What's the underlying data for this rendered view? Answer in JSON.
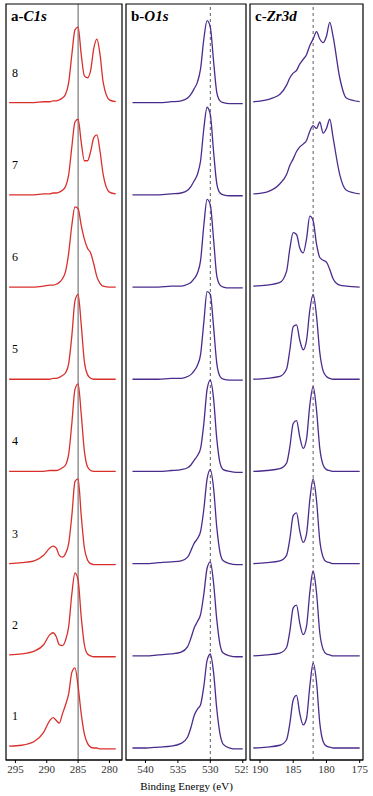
{
  "xlabel": "Binding Energy (eV)",
  "chart_data": [
    {
      "type": "line",
      "title": "a-C1s",
      "xlim": [
        296.5,
        278
      ],
      "xticks": [
        295,
        290,
        285,
        280
      ],
      "ylim": [
        -0.1,
        8.1
      ],
      "tick_labels": "x",
      "vlines": [
        {
          "x": 285,
          "line_style": "solid"
        }
      ],
      "x": [
        296,
        294,
        292,
        290.5,
        289.5,
        289,
        288.5,
        288,
        287.5,
        287,
        286.5,
        286,
        285.5,
        285,
        284.5,
        284,
        283.5,
        283,
        282.5,
        282,
        281.5,
        281,
        280,
        279
      ],
      "series": [
        {
          "name": "1",
          "color": "#d9302c",
          "values": [
            0.05,
            0.06,
            0.1,
            0.2,
            0.33,
            0.36,
            0.33,
            0.3,
            0.4,
            0.5,
            0.62,
            0.85,
            0.9,
            0.7,
            0.4,
            0.18,
            0.08,
            0.04,
            0.03,
            0.03,
            0.02,
            0.02,
            0.02,
            0.02
          ]
        },
        {
          "name": "2",
          "color": "#d9302c",
          "values": [
            1.04,
            1.05,
            1.08,
            1.15,
            1.26,
            1.28,
            1.24,
            1.15,
            1.14,
            1.2,
            1.35,
            1.7,
            1.93,
            1.85,
            1.45,
            1.15,
            1.05,
            1.03,
            1.02,
            1.02,
            1.02,
            1.02,
            1.02,
            1.02
          ]
        },
        {
          "name": "3",
          "color": "#d9302c",
          "values": [
            2.03,
            2.04,
            2.06,
            2.12,
            2.2,
            2.22,
            2.2,
            2.12,
            2.1,
            2.14,
            2.25,
            2.55,
            2.92,
            2.95,
            2.55,
            2.2,
            2.07,
            2.03,
            2.02,
            2.02,
            2.02,
            2.02,
            2.02,
            2.02
          ]
        },
        {
          "name": "4",
          "color": "#d9302c",
          "values": [
            3.03,
            3.03,
            3.03,
            3.03,
            3.04,
            3.04,
            3.04,
            3.05,
            3.07,
            3.1,
            3.22,
            3.55,
            3.92,
            3.98,
            3.65,
            3.25,
            3.08,
            3.04,
            3.03,
            3.03,
            3.03,
            3.03,
            3.03,
            3.03
          ]
        },
        {
          "name": "5",
          "color": "#d9302c",
          "values": [
            4.03,
            4.03,
            4.03,
            4.03,
            4.03,
            4.04,
            4.04,
            4.05,
            4.07,
            4.1,
            4.2,
            4.5,
            4.88,
            4.95,
            4.62,
            4.22,
            4.08,
            4.04,
            4.03,
            4.03,
            4.03,
            4.03,
            4.03,
            4.03
          ]
        },
        {
          "name": "6",
          "color": "#d9302c",
          "values": [
            5.03,
            5.03,
            5.03,
            5.04,
            5.05,
            5.05,
            5.06,
            5.08,
            5.12,
            5.2,
            5.4,
            5.7,
            5.9,
            5.88,
            5.7,
            5.55,
            5.45,
            5.4,
            5.28,
            5.14,
            5.07,
            5.04,
            5.03,
            5.03
          ]
        },
        {
          "name": "7",
          "color": "#d9302c",
          "values": [
            6.03,
            6.03,
            6.03,
            6.04,
            6.04,
            6.05,
            6.05,
            6.06,
            6.08,
            6.12,
            6.25,
            6.55,
            6.82,
            6.85,
            6.6,
            6.4,
            6.4,
            6.5,
            6.65,
            6.68,
            6.5,
            6.25,
            6.06,
            6.04
          ]
        },
        {
          "name": "8",
          "color": "#d9302c",
          "values": [
            7.03,
            7.03,
            7.03,
            7.04,
            7.04,
            7.05,
            7.05,
            7.06,
            7.08,
            7.12,
            7.25,
            7.55,
            7.82,
            7.85,
            7.55,
            7.32,
            7.3,
            7.38,
            7.62,
            7.72,
            7.55,
            7.25,
            7.06,
            7.04
          ]
        }
      ]
    },
    {
      "type": "line",
      "title": "b-O1s",
      "xlim": [
        543,
        524.5
      ],
      "xticks": [
        540,
        535,
        530,
        525
      ],
      "ylim": [
        -0.1,
        8.1
      ],
      "tick_labels": "x",
      "vlines": [
        {
          "x": 530,
          "line_style": "dashed"
        }
      ],
      "x": [
        542,
        540,
        538,
        536,
        534.5,
        533.5,
        533,
        532.5,
        532,
        531.5,
        531,
        530.5,
        530,
        529.5,
        529,
        528.5,
        528,
        527,
        526,
        525
      ],
      "series": [
        {
          "color": "#4a2c8c",
          "values": [
            0.03,
            0.03,
            0.04,
            0.05,
            0.08,
            0.15,
            0.25,
            0.38,
            0.45,
            0.5,
            0.7,
            0.98,
            1.05,
            0.85,
            0.45,
            0.18,
            0.07,
            0.03,
            0.02,
            0.02
          ]
        },
        {
          "color": "#4a2c8c",
          "values": [
            1.03,
            1.03,
            1.04,
            1.05,
            1.07,
            1.13,
            1.22,
            1.33,
            1.4,
            1.48,
            1.7,
            1.98,
            2.05,
            1.82,
            1.42,
            1.15,
            1.06,
            1.03,
            1.02,
            1.02
          ]
        },
        {
          "color": "#4a2c8c",
          "values": [
            2.03,
            2.03,
            2.04,
            2.05,
            2.06,
            2.1,
            2.17,
            2.25,
            2.3,
            2.38,
            2.62,
            2.95,
            3.05,
            2.85,
            2.42,
            2.15,
            2.06,
            2.03,
            2.02,
            2.02
          ]
        },
        {
          "color": "#4a2c8c",
          "values": [
            3.03,
            3.03,
            3.03,
            3.04,
            3.05,
            3.07,
            3.1,
            3.15,
            3.2,
            3.28,
            3.55,
            3.92,
            4.02,
            3.82,
            3.38,
            3.12,
            3.05,
            3.03,
            3.02,
            3.02
          ]
        },
        {
          "color": "#4a2c8c",
          "values": [
            4.03,
            4.03,
            4.03,
            4.04,
            4.04,
            4.06,
            4.08,
            4.12,
            4.18,
            4.3,
            4.65,
            4.98,
            4.95,
            4.6,
            4.2,
            4.06,
            4.03,
            4.02,
            4.02,
            4.02
          ]
        },
        {
          "color": "#4a2c8c",
          "values": [
            5.03,
            5.03,
            5.03,
            5.04,
            5.04,
            5.06,
            5.08,
            5.12,
            5.18,
            5.32,
            5.7,
            5.98,
            5.92,
            5.55,
            5.15,
            5.05,
            5.03,
            5.02,
            5.02,
            5.02
          ]
        },
        {
          "color": "#4a2c8c",
          "values": [
            6.03,
            6.03,
            6.03,
            6.04,
            6.05,
            6.08,
            6.12,
            6.18,
            6.25,
            6.4,
            6.75,
            6.98,
            6.9,
            6.5,
            6.15,
            6.05,
            6.03,
            6.02,
            6.02,
            6.02
          ]
        },
        {
          "color": "#4a2c8c",
          "values": [
            7.03,
            7.03,
            7.03,
            7.04,
            7.05,
            7.08,
            7.12,
            7.18,
            7.25,
            7.4,
            7.72,
            7.92,
            7.85,
            7.48,
            7.14,
            7.05,
            7.03,
            7.02,
            7.02,
            7.02
          ]
        }
      ]
    },
    {
      "type": "line",
      "title": "c-Zr3d",
      "xlim": [
        191.5,
        174.5
      ],
      "xticks": [
        190,
        185,
        180,
        175
      ],
      "ylim": [
        -0.1,
        8.1
      ],
      "tick_labels": "x",
      "vlines": [
        {
          "x": 182,
          "line_style": "dashed"
        }
      ],
      "x": [
        191,
        189,
        187,
        186,
        185.5,
        185,
        184.5,
        184,
        183.5,
        183,
        182.5,
        182,
        181.5,
        181,
        180.5,
        180,
        179.5,
        179,
        178,
        177,
        175
      ],
      "series": [
        {
          "color": "#4a2c8c",
          "values": [
            0.03,
            0.04,
            0.06,
            0.12,
            0.3,
            0.55,
            0.6,
            0.4,
            0.28,
            0.35,
            0.7,
            0.95,
            0.75,
            0.3,
            0.1,
            0.05,
            0.04,
            0.03,
            0.03,
            0.03,
            0.03
          ]
        },
        {
          "color": "#4a2c8c",
          "values": [
            1.03,
            1.04,
            1.06,
            1.12,
            1.3,
            1.55,
            1.58,
            1.38,
            1.26,
            1.35,
            1.72,
            1.95,
            1.72,
            1.28,
            1.1,
            1.05,
            1.04,
            1.03,
            1.03,
            1.03,
            1.03
          ]
        },
        {
          "color": "#4a2c8c",
          "values": [
            2.03,
            2.04,
            2.06,
            2.12,
            2.3,
            2.55,
            2.58,
            2.38,
            2.26,
            2.35,
            2.72,
            2.95,
            2.72,
            2.28,
            2.1,
            2.05,
            2.04,
            2.03,
            2.03,
            2.03,
            2.03
          ]
        },
        {
          "color": "#4a2c8c",
          "values": [
            3.03,
            3.04,
            3.06,
            3.12,
            3.3,
            3.55,
            3.58,
            3.4,
            3.28,
            3.38,
            3.75,
            3.95,
            3.7,
            3.28,
            3.1,
            3.05,
            3.04,
            3.03,
            3.03,
            3.03,
            3.03
          ]
        },
        {
          "color": "#4a2c8c",
          "values": [
            4.03,
            4.04,
            4.06,
            4.14,
            4.35,
            4.6,
            4.62,
            4.45,
            4.35,
            4.45,
            4.78,
            4.95,
            4.72,
            4.32,
            4.12,
            4.06,
            4.04,
            4.03,
            4.03,
            4.03,
            4.03
          ]
        },
        {
          "color": "#4a2c8c",
          "values": [
            5.04,
            5.05,
            5.08,
            5.2,
            5.45,
            5.62,
            5.6,
            5.45,
            5.4,
            5.55,
            5.8,
            5.75,
            5.5,
            5.35,
            5.32,
            5.3,
            5.22,
            5.12,
            5.05,
            5.04,
            5.03
          ]
        },
        {
          "color": "#4a2c8c",
          "values": [
            6.04,
            6.06,
            6.15,
            6.25,
            6.35,
            6.42,
            6.5,
            6.55,
            6.58,
            6.62,
            6.72,
            6.78,
            6.75,
            6.82,
            6.7,
            6.75,
            6.85,
            6.65,
            6.25,
            6.08,
            6.04
          ]
        },
        {
          "color": "#4a2c8c",
          "values": [
            7.04,
            7.06,
            7.12,
            7.22,
            7.3,
            7.35,
            7.38,
            7.45,
            7.5,
            7.55,
            7.65,
            7.72,
            7.8,
            7.72,
            7.68,
            7.75,
            7.9,
            7.75,
            7.3,
            7.08,
            7.04
          ]
        }
      ]
    }
  ]
}
